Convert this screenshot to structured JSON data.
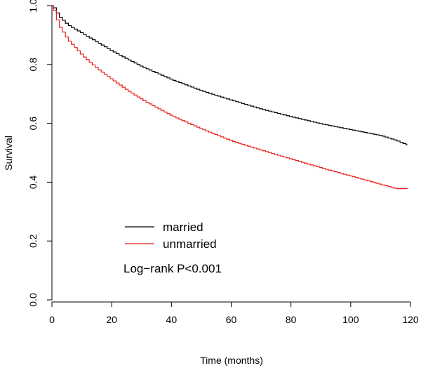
{
  "chart_data": {
    "type": "line",
    "step": true,
    "title": "",
    "xlabel": "Time (months)",
    "ylabel": "Survival",
    "xlim": [
      0,
      120
    ],
    "ylim": [
      0.0,
      1.0
    ],
    "xticks": [
      0,
      20,
      40,
      60,
      80,
      100,
      120
    ],
    "yticks": [
      0.0,
      0.2,
      0.4,
      0.6,
      0.8,
      1.0
    ],
    "xtick_labels": [
      "0",
      "20",
      "40",
      "60",
      "80",
      "100",
      "120"
    ],
    "ytick_labels": [
      "0.0",
      "0.2",
      "0.4",
      "0.6",
      "0.8",
      "1.0"
    ],
    "legend_position": "bottom-left",
    "annotation": "Log−rank P<0.001",
    "series": [
      {
        "name": "married",
        "color": "#000000",
        "x": [
          0,
          1,
          2,
          5,
          10,
          15,
          20,
          25,
          30,
          35,
          40,
          50,
          60,
          70,
          80,
          90,
          100,
          110,
          115,
          119
        ],
        "y": [
          1.0,
          0.985,
          0.965,
          0.935,
          0.905,
          0.875,
          0.845,
          0.818,
          0.792,
          0.77,
          0.748,
          0.71,
          0.678,
          0.648,
          0.622,
          0.598,
          0.578,
          0.558,
          0.542,
          0.525
        ]
      },
      {
        "name": "unmarried",
        "color": "#e8201a",
        "x": [
          0,
          1,
          2,
          5,
          10,
          15,
          20,
          25,
          30,
          35,
          40,
          50,
          60,
          70,
          80,
          90,
          100,
          110,
          115,
          119
        ],
        "y": [
          1.0,
          0.968,
          0.935,
          0.885,
          0.83,
          0.785,
          0.748,
          0.712,
          0.68,
          0.652,
          0.625,
          0.58,
          0.54,
          0.508,
          0.478,
          0.448,
          0.42,
          0.392,
          0.378,
          0.378
        ]
      }
    ]
  }
}
